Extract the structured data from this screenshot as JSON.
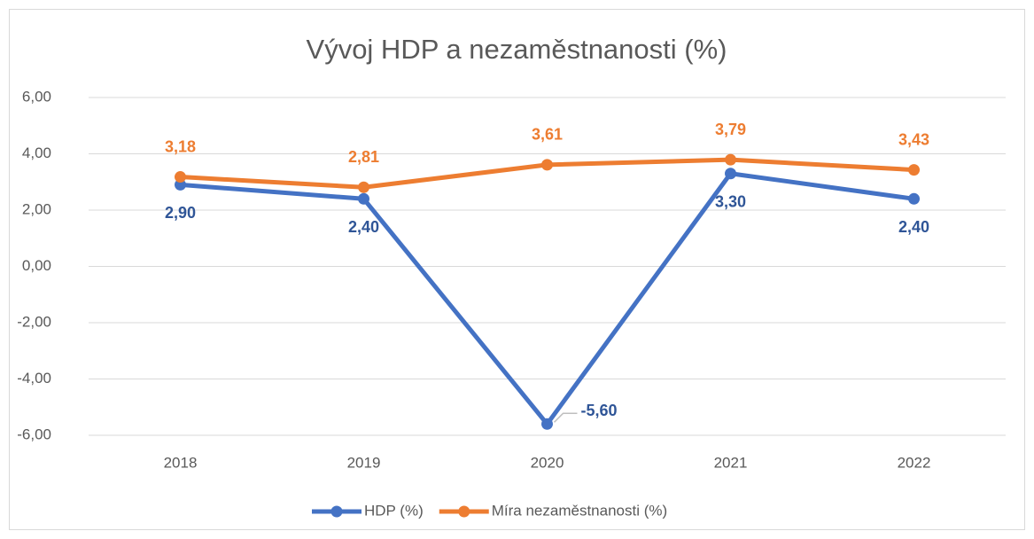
{
  "chart_data": {
    "type": "line",
    "title": "Vývoj HDP a nezaměstnanosti (%)",
    "categories": [
      "2018",
      "2019",
      "2020",
      "2021",
      "2022"
    ],
    "series": [
      {
        "name": "HDP (%)",
        "color": "#4472c4",
        "values": [
          2.9,
          2.4,
          -5.6,
          3.3,
          2.4
        ],
        "value_labels": [
          "2,90",
          "2,40",
          "-5,60",
          "3,30",
          "2,40"
        ]
      },
      {
        "name": "Míra nezaměstnanosti (%)",
        "color": "#ed7d31",
        "values": [
          3.18,
          2.81,
          3.61,
          3.79,
          3.43
        ],
        "value_labels": [
          "3,18",
          "2,81",
          "3,61",
          "3,79",
          "3,43"
        ]
      }
    ],
    "ylim": [
      -6,
      6
    ],
    "yticks": [
      {
        "value": -6,
        "label": "-6,00"
      },
      {
        "value": -4,
        "label": "-4,00"
      },
      {
        "value": -2,
        "label": "-2,00"
      },
      {
        "value": 0,
        "label": "0,00"
      },
      {
        "value": 2,
        "label": "2,00"
      },
      {
        "value": 4,
        "label": "4,00"
      },
      {
        "value": 6,
        "label": "6,00"
      }
    ],
    "grid": true,
    "legend": "bottom"
  }
}
